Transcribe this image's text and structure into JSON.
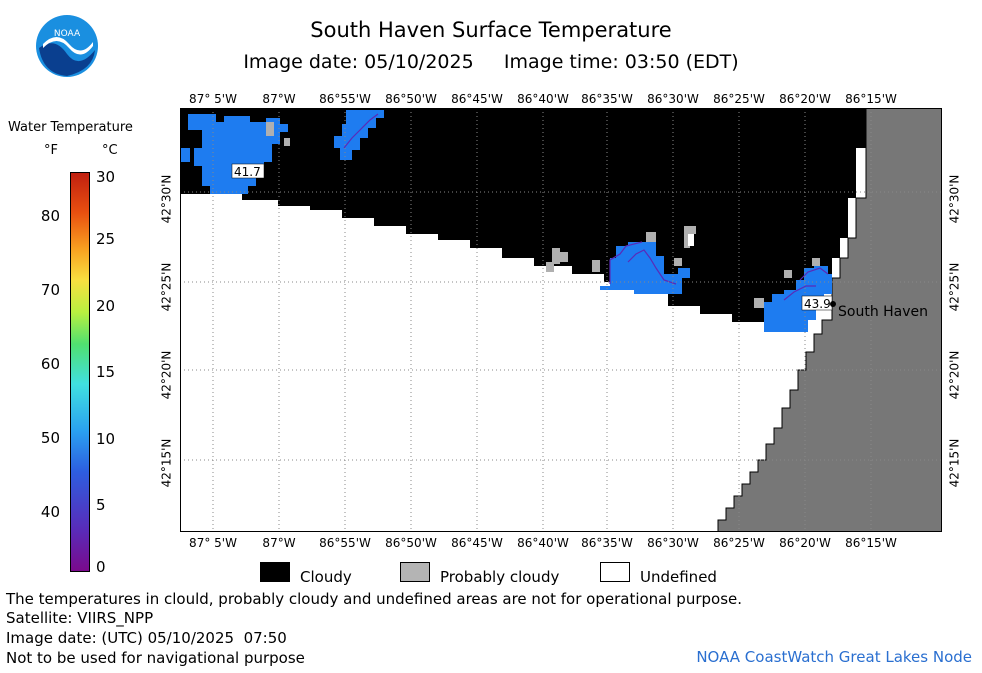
{
  "header": {
    "title": "South Haven Surface Temperature",
    "image_date_label": "Image date: 05/10/2025",
    "image_time_label": "Image time: 03:50 (EDT)"
  },
  "colorbar": {
    "title": "Water Temperature",
    "unit_f": "°F",
    "unit_c": "°C",
    "ticks_f": [
      "80",
      "70",
      "60",
      "50",
      "40"
    ],
    "ticks_c": [
      "30",
      "25",
      "20",
      "15",
      "10",
      "5",
      "0"
    ]
  },
  "map": {
    "longitudes": [
      "87° 5'W",
      "87°W",
      "86°55'W",
      "86°50'W",
      "86°45'W",
      "86°40'W",
      "86°35'W",
      "86°30'W",
      "86°25'W",
      "86°20'W",
      "86°15'W"
    ],
    "latitudes": [
      "42°30'N",
      "42°25'N",
      "42°20'N",
      "42°15'N"
    ],
    "labels": {
      "temp1": "41.7",
      "temp2": "43.9",
      "city": "South Haven"
    }
  },
  "legend": {
    "cloudy": "Cloudy",
    "probably_cloudy": "Probably cloudy",
    "undefined": "Undefined"
  },
  "footer": {
    "line1": "The temperatures in clould, probably cloudy and undefined areas are not for operational purpose.",
    "line2": "Satellite: VIIRS_NPP",
    "line3": "Image date: (UTC) 05/10/2025  07:50",
    "line4": "Not to be used for navigational purpose",
    "credit": "NOAA CoastWatch Great Lakes Node"
  },
  "logo": {
    "text": "NOAA"
  }
}
